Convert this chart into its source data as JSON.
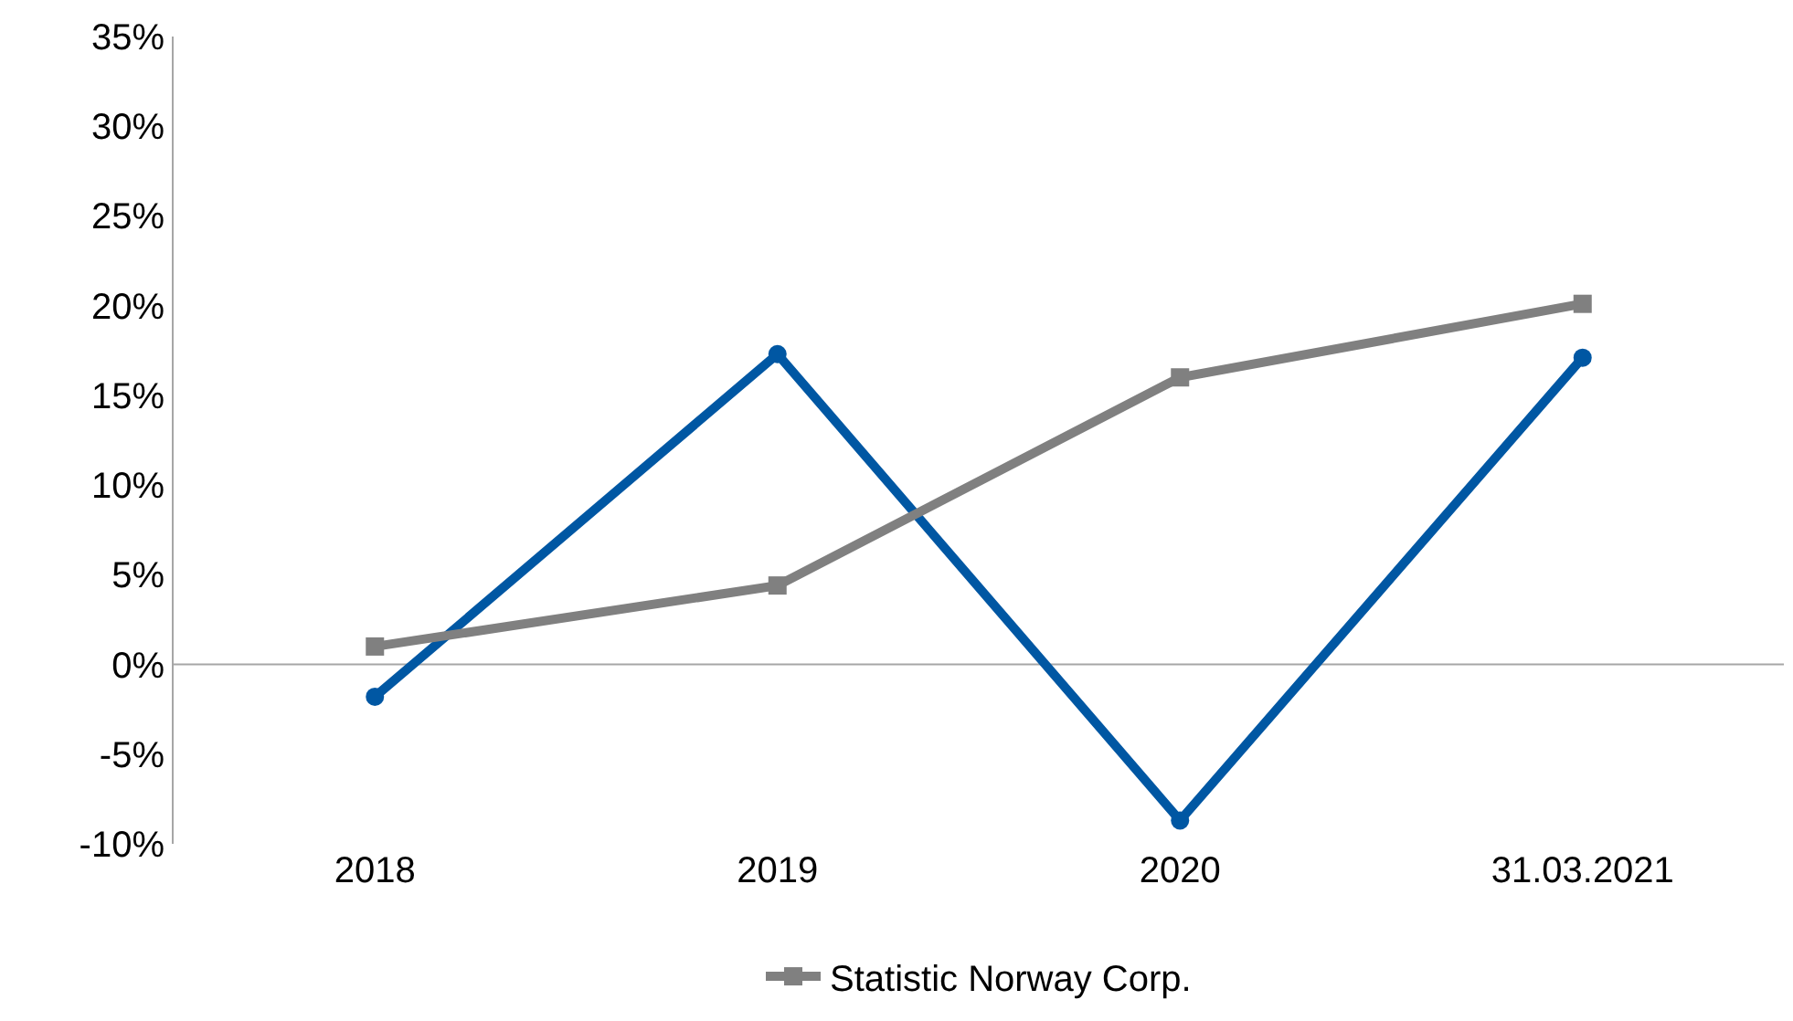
{
  "chart_data": {
    "type": "line",
    "categories": [
      "2018",
      "2019",
      "2020",
      "31.03.2021"
    ],
    "series": [
      {
        "color": "#0057a3",
        "values": [
          -1.8,
          17.3,
          -8.7,
          17.1
        ],
        "marker": "circle"
      },
      {
        "name": "Statistic Norway Corp.",
        "color": "#808080",
        "values": [
          1.0,
          4.4,
          16.0,
          20.1
        ],
        "marker": "square"
      }
    ],
    "ylim": [
      -10,
      35
    ],
    "yticks": [
      {
        "value": -10,
        "label": "-10%"
      },
      {
        "value": -5,
        "label": "-5%"
      },
      {
        "value": 0,
        "label": "0%"
      },
      {
        "value": 5,
        "label": "5%"
      },
      {
        "value": 10,
        "label": "10%"
      },
      {
        "value": 15,
        "label": "15%"
      },
      {
        "value": 20,
        "label": "20%"
      },
      {
        "value": 25,
        "label": "25%"
      },
      {
        "value": 30,
        "label": "30%"
      },
      {
        "value": 35,
        "label": "35%"
      }
    ],
    "grid": false,
    "legend": "bottom",
    "ref_lines": [
      {
        "axis": "y",
        "value": 0,
        "color": "#a6a6a6"
      }
    ]
  }
}
